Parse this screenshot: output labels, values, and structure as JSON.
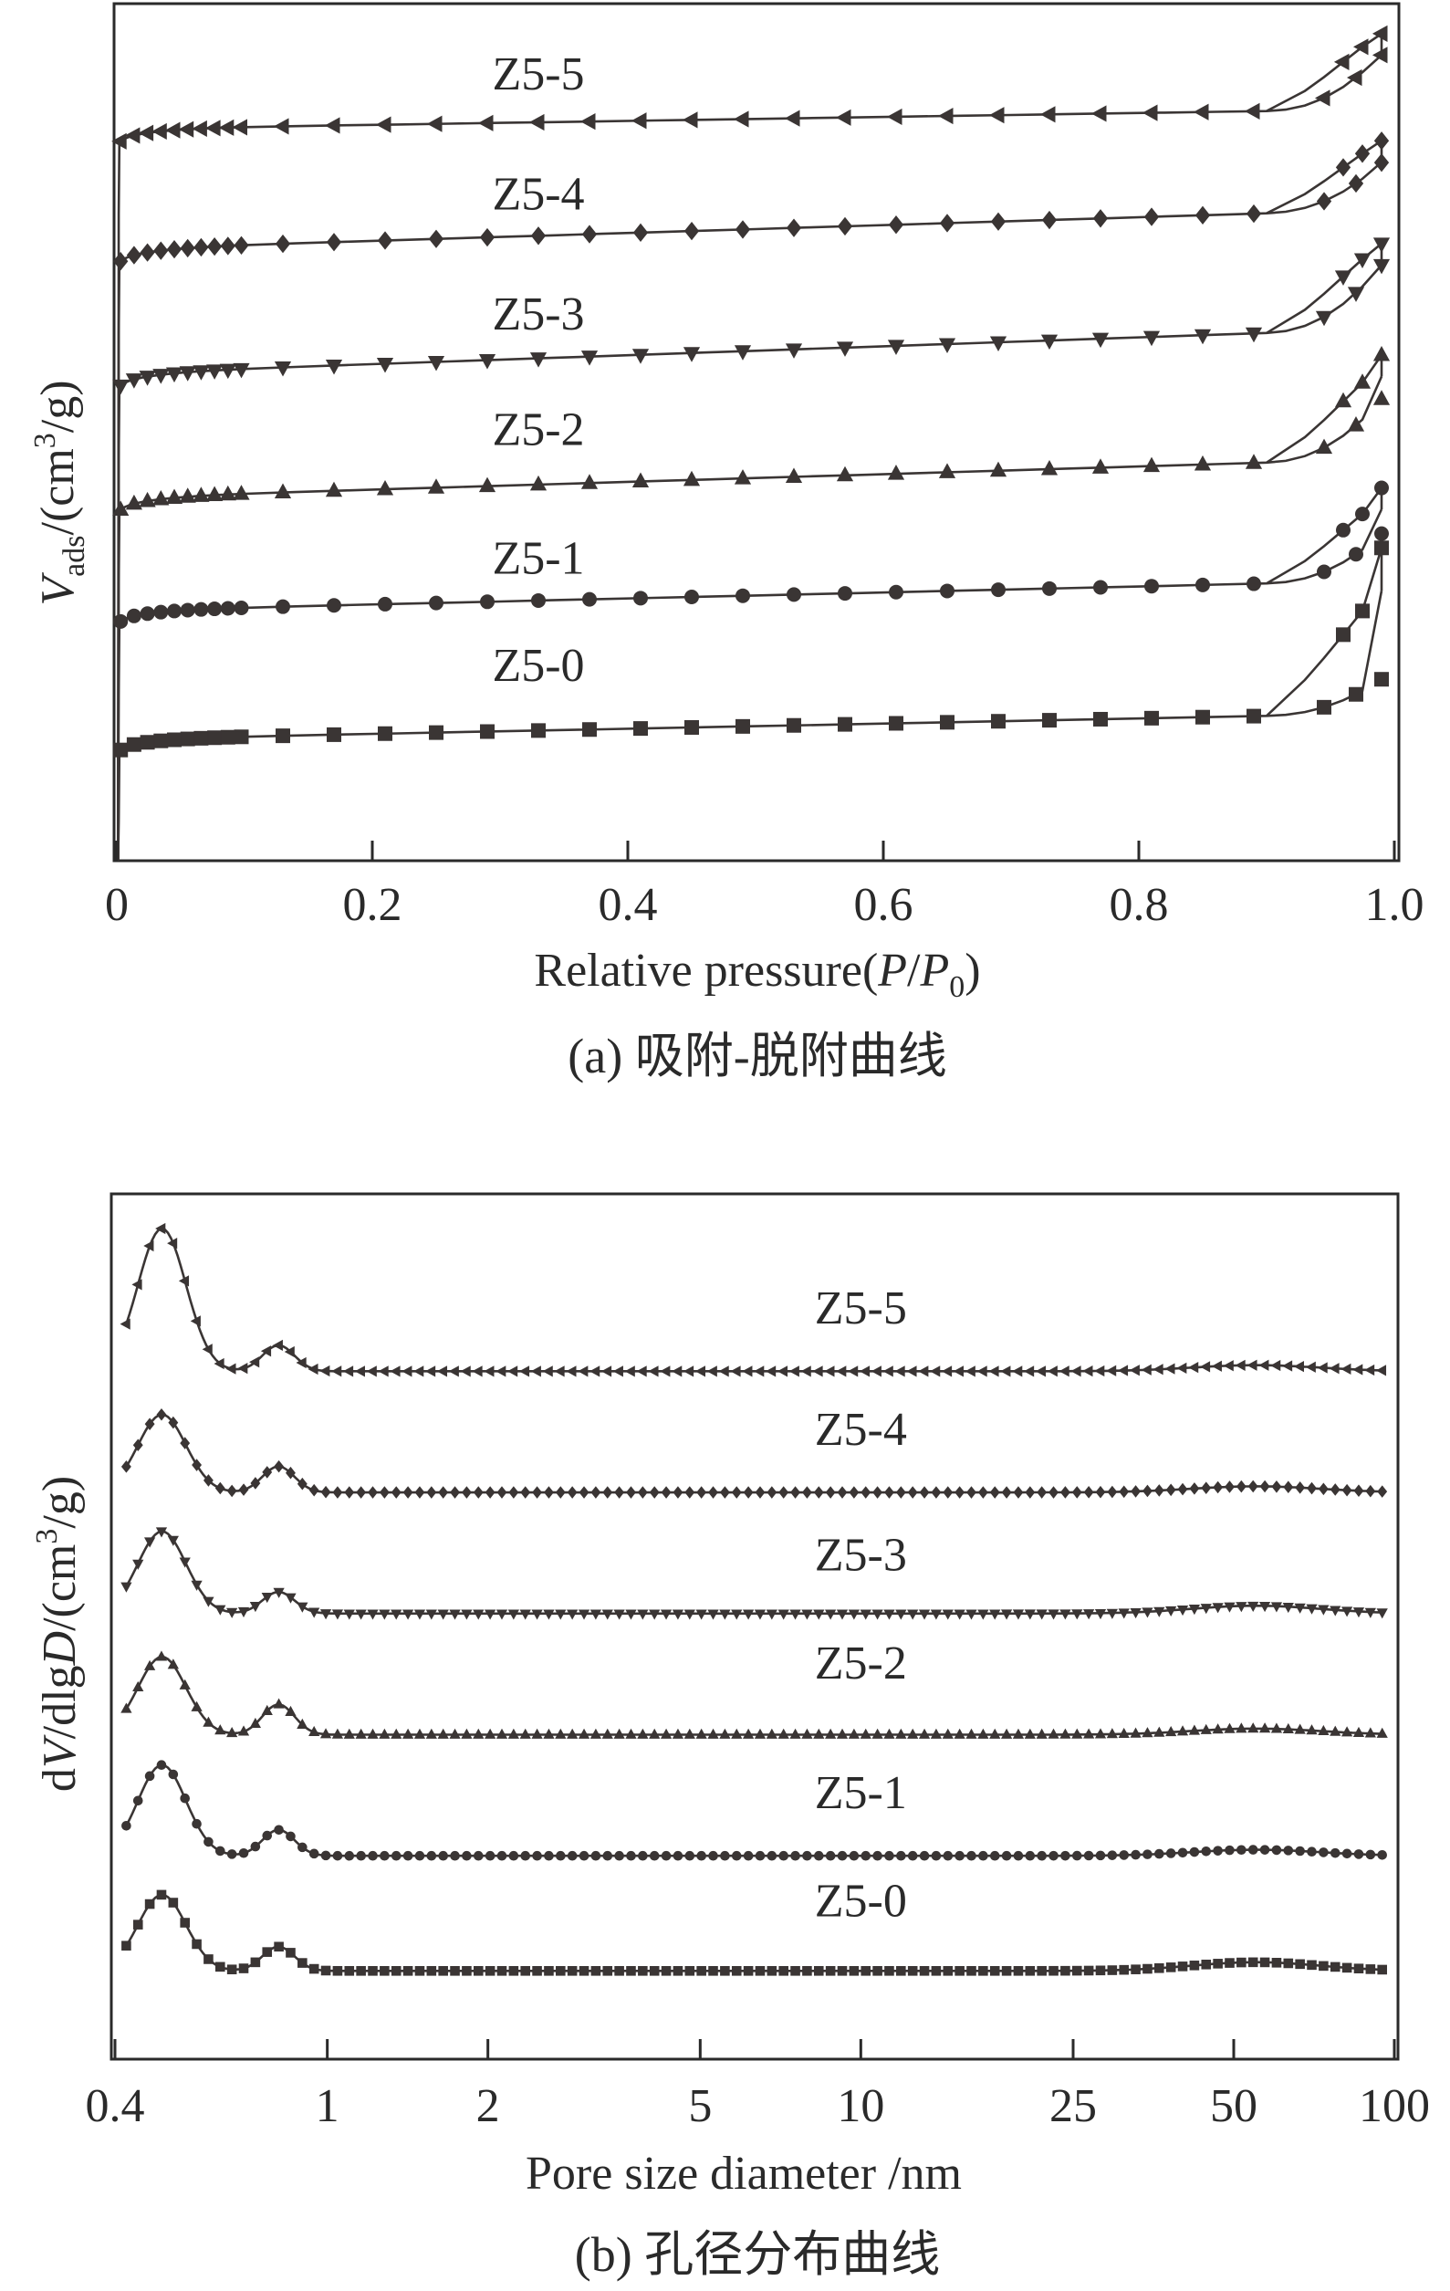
{
  "chart_data": [
    {
      "type": "line",
      "panel_caption": "(a) 吸附-脱附曲线",
      "xlabel": "Relative pressure(P/P0)",
      "xlabel_parts": {
        "main": "Relative pressure(",
        "italic1": "P",
        "slash": "/",
        "italic2": "P",
        "sub": "0",
        "close": ")"
      },
      "ylabel_parts": {
        "italic": "V",
        "sub": "ads",
        "mid": "/(cm",
        "sup": "3",
        "end": "/g)"
      },
      "ylabel": "Vads/(cm3/g)",
      "xlim": [
        0,
        1.0
      ],
      "ylim": [
        0,
        100
      ],
      "x_ticks": [
        0,
        0.2,
        0.4,
        0.6,
        0.8,
        1.0
      ],
      "x_tick_labels": [
        "0",
        "0.2",
        "0.4",
        "0.6",
        "0.8",
        "1.0"
      ],
      "y_ticks_shown": false,
      "series": [
        {
          "name": "Z5-5",
          "marker": "triangle-left",
          "label_x": 0.33,
          "label_y": 90,
          "base": 83.5,
          "jump": 0.7,
          "rise": 1.2,
          "slope": 2.3,
          "knee": 6.5,
          "top": 96.5,
          "hyst": 2.5
        },
        {
          "name": "Z5-4",
          "marker": "diamond",
          "label_x": 0.33,
          "label_y": 76,
          "base": 69.5,
          "jump": 0.7,
          "rise": 1.2,
          "slope": 4.6,
          "knee": 5.5,
          "top": 84.0,
          "hyst": 2.5
        },
        {
          "name": "Z5-3",
          "marker": "triangle-down",
          "label_x": 0.33,
          "label_y": 62,
          "base": 55.0,
          "jump": 0.7,
          "rise": 1.2,
          "slope": 5.2,
          "knee": 7.5,
          "top": 72.0,
          "hyst": 2.5
        },
        {
          "name": "Z5-2",
          "marker": "triangle-up",
          "label_x": 0.33,
          "label_y": 48.5,
          "base": 40.5,
          "jump": 0.7,
          "rise": 1.2,
          "slope": 4.5,
          "knee": 7.0,
          "top": 59.0,
          "hyst": 2.5
        },
        {
          "name": "Z5-1",
          "marker": "circle",
          "label_x": 0.33,
          "label_y": 33.5,
          "base": 27.5,
          "jump": 0.7,
          "rise": 1.0,
          "slope": 3.5,
          "knee": 5.5,
          "top": 43.5,
          "hyst": 2.5
        },
        {
          "name": "Z5-0",
          "marker": "square",
          "label_x": 0.33,
          "label_y": 21,
          "base": 12.5,
          "jump": 0.7,
          "rise": 1.0,
          "slope": 3.0,
          "knee": 4.0,
          "top": 36.5,
          "hyst": 5.0
        }
      ]
    },
    {
      "type": "line",
      "panel_caption": "(b) 孔径分布曲线",
      "xlabel": "Pore size diameter /nm",
      "ylabel": "dV/dlgD/(cm3/g)",
      "ylabel_parts": {
        "pre": "d",
        "italic1": "V",
        "mid": "/dlg",
        "italic2": "D",
        "unit": "/(cm",
        "sup": "3",
        "end": "/g)"
      },
      "x_scale": "log",
      "xlim": [
        0.4,
        100
      ],
      "ylim": [
        0,
        100
      ],
      "x_ticks": [
        0.4,
        1,
        2,
        5,
        10,
        25,
        50,
        100
      ],
      "x_tick_labels": [
        "0.4",
        "1",
        "2",
        "5",
        "10",
        "25",
        "50",
        "100"
      ],
      "y_ticks_shown": false,
      "series": [
        {
          "name": "Z5-5",
          "marker": "triangle-left",
          "label_x": 10,
          "label_y": 85,
          "base": 79.5,
          "start": 81.0,
          "peak1": 96.0,
          "peak2": 82.5,
          "tail": 80.2
        },
        {
          "name": "Z5-4",
          "marker": "diamond",
          "label_x": 10,
          "label_y": 71,
          "base": 65.5,
          "start": 65.5,
          "peak1": 74.5,
          "peak2": 68.5,
          "tail": 66.2
        },
        {
          "name": "Z5-3",
          "marker": "triangle-down",
          "label_x": 10,
          "label_y": 56.5,
          "base": 51.5,
          "start": 52.5,
          "peak1": 61.0,
          "peak2": 54.0,
          "tail": 52.4
        },
        {
          "name": "Z5-2",
          "marker": "triangle-up",
          "label_x": 10,
          "label_y": 44,
          "base": 37.5,
          "start": 37.5,
          "peak1": 46.5,
          "peak2": 41.0,
          "tail": 38.2
        },
        {
          "name": "Z5-1",
          "marker": "circle",
          "label_x": 10,
          "label_y": 29,
          "base": 23.5,
          "start": 23.5,
          "peak1": 34.0,
          "peak2": 26.5,
          "tail": 24.2
        },
        {
          "name": "Z5-0",
          "marker": "square",
          "label_x": 10,
          "label_y": 16.5,
          "base": 10.2,
          "start": 10.5,
          "peak1": 19.0,
          "peak2": 13.0,
          "tail": 11.2
        }
      ]
    }
  ]
}
